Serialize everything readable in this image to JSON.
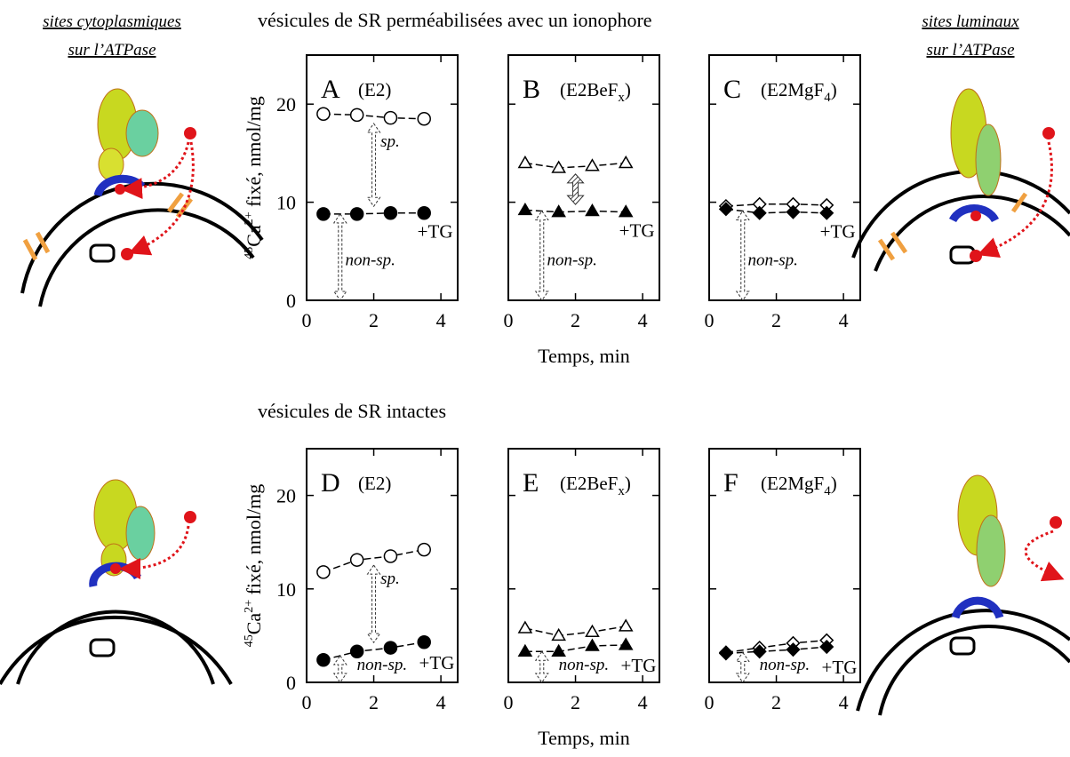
{
  "header": {
    "title_top": "vésicules de SR perméabilisées avec un ionophore",
    "title_bottom": "vésicules de SR intactes",
    "left_caption": [
      "sites cytoplasmiques",
      "sur l’ATPase"
    ],
    "right_caption": [
      "sites luminaux",
      "sur l’ATPase"
    ]
  },
  "chart_data": [
    {
      "type": "scatter",
      "title": "A",
      "subtitle": [
        "(E2)"
      ],
      "ylabel": [
        "45",
        "Ca",
        "2+",
        " fixé, nmol/mg"
      ],
      "x": [
        0.5,
        1.5,
        2.5,
        3.5
      ],
      "xlim": [
        0,
        4.5
      ],
      "ylim": [
        0,
        25
      ],
      "xticks": [
        0,
        2,
        4
      ],
      "yticks": [
        0,
        10,
        20
      ],
      "series": [
        {
          "marker": "circle",
          "filled": false,
          "color": "#000000",
          "values": [
            19.0,
            18.9,
            18.6,
            18.5
          ]
        },
        {
          "marker": "circle",
          "filled": true,
          "color": "#000000",
          "values": [
            8.8,
            8.8,
            8.9,
            8.9
          ]
        }
      ],
      "specific_arrow": "dashed",
      "annotations": {
        "specific": "sp.",
        "nonspecific": "non-sp.",
        "tg": "+TG"
      }
    },
    {
      "type": "scatter",
      "title": "B",
      "subtitle": [
        "(E2BeF",
        "x",
        ")"
      ],
      "xlabel": "Temps, min",
      "x": [
        0.5,
        1.5,
        2.5,
        3.5
      ],
      "xlim": [
        0,
        4.5
      ],
      "ylim": [
        0,
        25
      ],
      "xticks": [
        0,
        2,
        4
      ],
      "yticks": [
        0,
        10,
        20
      ],
      "series": [
        {
          "marker": "triangle",
          "filled": false,
          "color": "#000000",
          "values": [
            14.0,
            13.5,
            13.7,
            14.0
          ]
        },
        {
          "marker": "triangle",
          "filled": true,
          "color": "#000000",
          "values": [
            9.2,
            9.0,
            9.1,
            9.0
          ]
        }
      ],
      "specific_arrow": "hatched",
      "annotations": {
        "nonspecific": "non-sp.",
        "tg": "+TG"
      }
    },
    {
      "type": "scatter",
      "title": "C",
      "subtitle": [
        "(E2MgF",
        "4",
        ")"
      ],
      "x": [
        0.5,
        1.5,
        2.5,
        3.5
      ],
      "xlim": [
        0,
        4.5
      ],
      "ylim": [
        0,
        25
      ],
      "xticks": [
        0,
        2,
        4
      ],
      "yticks": [
        0,
        10,
        20
      ],
      "series": [
        {
          "marker": "diamond",
          "filled": false,
          "color": "#000000",
          "values": [
            9.6,
            9.8,
            9.8,
            9.7
          ]
        },
        {
          "marker": "diamond",
          "filled": true,
          "color": "#000000",
          "values": [
            9.3,
            8.9,
            9.0,
            8.9
          ]
        }
      ],
      "specific_arrow": "none",
      "annotations": {
        "nonspecific": "non-sp.",
        "tg": "+TG"
      }
    },
    {
      "type": "scatter",
      "title": "D",
      "subtitle": [
        "(E2)"
      ],
      "ylabel": [
        "45",
        "Ca",
        "2+",
        " fixé, nmol/mg"
      ],
      "x": [
        0.5,
        1.5,
        2.5,
        3.5
      ],
      "xlim": [
        0,
        4.5
      ],
      "ylim": [
        0,
        25
      ],
      "xticks": [
        0,
        2,
        4
      ],
      "yticks": [
        0,
        10,
        20
      ],
      "series": [
        {
          "marker": "circle",
          "filled": false,
          "color": "#000000",
          "values": [
            11.8,
            13.1,
            13.5,
            14.2
          ]
        },
        {
          "marker": "circle",
          "filled": true,
          "color": "#000000",
          "values": [
            2.4,
            3.3,
            3.7,
            4.3
          ]
        }
      ],
      "specific_arrow": "dashed",
      "annotations": {
        "specific": "sp.",
        "nonspecific": "non-sp.",
        "tg": "+TG"
      }
    },
    {
      "type": "scatter",
      "title": "E",
      "subtitle": [
        "(E2BeF",
        "x",
        ")"
      ],
      "xlabel": "Temps, min",
      "x": [
        0.5,
        1.5,
        2.5,
        3.5
      ],
      "xlim": [
        0,
        4.5
      ],
      "ylim": [
        0,
        25
      ],
      "xticks": [
        0,
        2,
        4
      ],
      "yticks": [
        0,
        10,
        20
      ],
      "series": [
        {
          "marker": "triangle",
          "filled": false,
          "color": "#000000",
          "values": [
            5.8,
            5.0,
            5.4,
            6.0
          ]
        },
        {
          "marker": "triangle",
          "filled": true,
          "color": "#000000",
          "values": [
            3.3,
            3.3,
            3.9,
            4.0
          ]
        }
      ],
      "specific_arrow": "hatched",
      "annotations": {
        "nonspecific": "non-sp.",
        "tg": "+TG"
      }
    },
    {
      "type": "scatter",
      "title": "F",
      "subtitle": [
        "(E2MgF",
        "4",
        ")"
      ],
      "x": [
        0.5,
        1.5,
        2.5,
        3.5
      ],
      "xlim": [
        0,
        4.5
      ],
      "ylim": [
        0,
        25
      ],
      "xticks": [
        0,
        2,
        4
      ],
      "yticks": [
        0,
        10,
        20
      ],
      "series": [
        {
          "marker": "diamond",
          "filled": false,
          "color": "#000000",
          "values": [
            3.2,
            3.7,
            4.2,
            4.5
          ]
        },
        {
          "marker": "diamond",
          "filled": true,
          "color": "#000000",
          "values": [
            3.1,
            3.3,
            3.5,
            3.8
          ]
        }
      ],
      "specific_arrow": "none",
      "annotations": {
        "nonspecific": "non-sp.",
        "tg": "+TG"
      }
    }
  ]
}
